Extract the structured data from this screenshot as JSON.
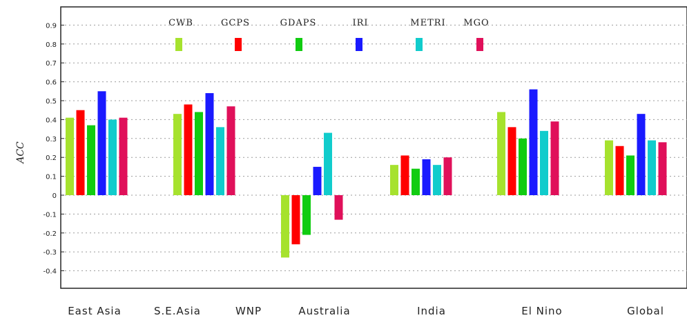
{
  "chart_data": {
    "type": "bar",
    "title": "",
    "xlabel": "",
    "ylabel": "ACC",
    "ylim": [
      -0.45,
      0.97
    ],
    "yticks": [
      0.9,
      0.8,
      0.7,
      0.6,
      0.5,
      0.4,
      0.3,
      0.2,
      0.1,
      0,
      -0.1,
      -0.2,
      -0.3,
      -0.4
    ],
    "grid": true,
    "legend_position": "top",
    "categories": [
      "East Asia",
      "S.E.Asia",
      "WNP",
      "Australia",
      "India",
      "El Nino",
      "Global"
    ],
    "series": [
      {
        "name": "CWB",
        "color": "#a6e22e",
        "values": [
          0.41,
          0.43,
          null,
          -0.33,
          0.16,
          0.44,
          0.29
        ]
      },
      {
        "name": "GCPS",
        "color": "#ff0000",
        "values": [
          0.45,
          0.48,
          null,
          -0.26,
          0.21,
          0.36,
          0.26
        ]
      },
      {
        "name": "GDAPS",
        "color": "#11cc11",
        "values": [
          0.37,
          0.44,
          null,
          -0.21,
          0.14,
          0.3,
          0.21
        ]
      },
      {
        "name": "IRI",
        "color": "#1a1aff",
        "values": [
          0.55,
          0.54,
          null,
          0.15,
          0.19,
          0.56,
          0.43
        ]
      },
      {
        "name": "METRI",
        "color": "#11cccc",
        "values": [
          0.4,
          0.36,
          null,
          0.33,
          0.16,
          0.34,
          0.29
        ]
      },
      {
        "name": "MGO",
        "color": "#e0105a",
        "values": [
          0.41,
          0.47,
          null,
          -0.13,
          0.2,
          0.39,
          0.28
        ]
      }
    ]
  }
}
